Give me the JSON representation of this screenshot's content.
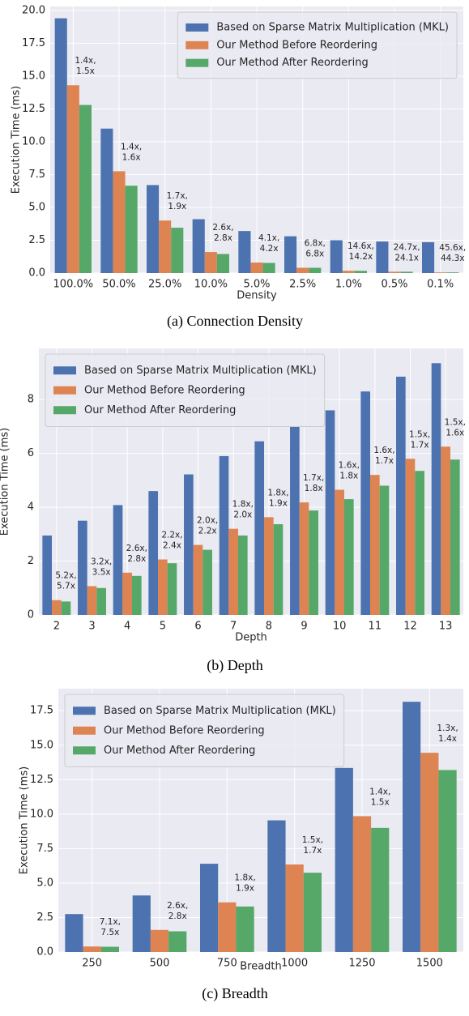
{
  "chart_data": [
    {
      "type": "bar",
      "caption": "(a) Connection Density",
      "xlabel": "Density",
      "ylabel": "Execution Time (ms)",
      "categories": [
        "100.0%",
        "50.0%",
        "25.0%",
        "10.0%",
        "5.0%",
        "2.5%",
        "1.0%",
        "0.5%",
        "0.1%"
      ],
      "series": [
        {
          "name": "Based on Sparse Matrix Multiplication (MKL)",
          "color": "#4c72b0",
          "values": [
            19.4,
            11.0,
            6.7,
            4.1,
            3.2,
            2.8,
            2.5,
            2.4,
            2.35
          ]
        },
        {
          "name": "Our Method Before Reordering",
          "color": "#dd8452",
          "values": [
            14.3,
            7.75,
            4.0,
            1.6,
            0.8,
            0.4,
            0.17,
            0.1,
            0.05
          ]
        },
        {
          "name": "Our Method After Reordering",
          "color": "#55a868",
          "values": [
            12.8,
            6.65,
            3.45,
            1.45,
            0.77,
            0.4,
            0.17,
            0.1,
            0.05
          ]
        }
      ],
      "annotations": [
        [
          "1.4x,",
          "1.5x"
        ],
        [
          "1.4x,",
          "1.6x"
        ],
        [
          "1.7x,",
          "1.9x"
        ],
        [
          "2.6x,",
          "2.8x"
        ],
        [
          "4.1x,",
          "4.2x"
        ],
        [
          "6.8x,",
          "6.8x"
        ],
        [
          "14.6x,",
          "14.2x"
        ],
        [
          "24.7x,",
          "24.1x"
        ],
        [
          "45.6x,",
          "44.3x"
        ]
      ],
      "ylim": [
        0,
        20.3
      ],
      "yticks": [
        {
          "value": 0,
          "label": "0.0"
        },
        2.5,
        {
          "value": 5,
          "label": "5.0"
        },
        7.5,
        {
          "value": 10,
          "label": "10.0"
        },
        12.5,
        {
          "value": 15,
          "label": "15.0"
        },
        17.5,
        {
          "value": 20,
          "label": "20.0"
        }
      ],
      "grid": true,
      "legend": "upper right"
    },
    {
      "type": "bar",
      "caption": "(b) Depth",
      "xlabel": "Depth",
      "ylabel": "Execution Time (ms)",
      "categories": [
        "2",
        "3",
        "4",
        "5",
        "6",
        "7",
        "8",
        "9",
        "10",
        "11",
        "12",
        "13"
      ],
      "series": [
        {
          "name": "Based on Sparse Matrix Multiplication (MKL)",
          "color": "#4c72b0",
          "values": [
            2.95,
            3.5,
            4.08,
            4.6,
            5.22,
            5.9,
            6.45,
            7.0,
            7.6,
            8.3,
            8.85,
            9.35
          ]
        },
        {
          "name": "Our Method Before Reordering",
          "color": "#dd8452",
          "values": [
            0.55,
            1.07,
            1.57,
            2.06,
            2.6,
            3.2,
            3.63,
            4.18,
            4.65,
            5.2,
            5.8,
            6.25
          ]
        },
        {
          "name": "Our Method After Reordering",
          "color": "#55a868",
          "values": [
            0.5,
            1.0,
            1.45,
            1.92,
            2.42,
            2.95,
            3.37,
            3.88,
            4.3,
            4.8,
            5.35,
            5.77
          ]
        }
      ],
      "annotations": [
        [
          "5.2x,",
          "5.7x"
        ],
        [
          "3.2x,",
          "3.5x"
        ],
        [
          "2.6x,",
          "2.8x"
        ],
        [
          "2.2x,",
          "2.4x"
        ],
        [
          "2.0x,",
          "2.2x"
        ],
        [
          "1.8x,",
          "2.0x"
        ],
        [
          "1.8x,",
          "1.9x"
        ],
        [
          "1.7x,",
          "1.8x"
        ],
        [
          "1.6x,",
          "1.8x"
        ],
        [
          "1.6x,",
          "1.7x"
        ],
        [
          "1.5x,",
          "1.7x"
        ],
        [
          "1.5x,",
          "1.6x"
        ]
      ],
      "ylim": [
        0,
        9.9
      ],
      "yticks": [
        0,
        2,
        4,
        6,
        8
      ],
      "grid": true,
      "legend": "upper left"
    },
    {
      "type": "bar",
      "caption": "(c) Breadth",
      "xlabel": "Breadth",
      "ylabel": "Execution Time (ms)",
      "categories": [
        "250",
        "500",
        "750",
        "1000",
        "1250",
        "1500"
      ],
      "series": [
        {
          "name": "Based on Sparse Matrix Multiplication (MKL)",
          "color": "#4c72b0",
          "values": [
            2.75,
            4.1,
            6.4,
            9.55,
            13.35,
            18.15
          ]
        },
        {
          "name": "Our Method Before Reordering",
          "color": "#dd8452",
          "values": [
            0.4,
            1.6,
            3.6,
            6.35,
            9.85,
            14.45
          ]
        },
        {
          "name": "Our Method After Reordering",
          "color": "#55a868",
          "values": [
            0.38,
            1.5,
            3.3,
            5.75,
            9.0,
            13.2
          ]
        }
      ],
      "annotations": [
        [
          "7.1x,",
          "7.5x"
        ],
        [
          "2.6x,",
          "2.8x"
        ],
        [
          "1.8x,",
          "1.9x"
        ],
        [
          "1.5x,",
          "1.7x"
        ],
        [
          "1.4x,",
          "1.5x"
        ],
        [
          "1.3x,",
          "1.4x"
        ]
      ],
      "ylim": [
        0,
        19.1
      ],
      "yticks": [
        {
          "value": 0,
          "label": "0.0"
        },
        2.5,
        {
          "value": 5,
          "label": "5.0"
        },
        7.5,
        {
          "value": 10,
          "label": "10.0"
        },
        12.5,
        {
          "value": 15,
          "label": "15.0"
        },
        17.5
      ],
      "grid": true,
      "legend": "upper left"
    }
  ]
}
